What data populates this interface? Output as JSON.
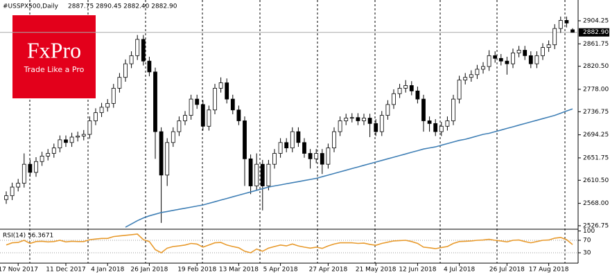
{
  "logo": {
    "brand": "FxPro",
    "tagline": "Trade Like a Pro"
  },
  "chart_data": [
    {
      "type": "candlestick",
      "title": "#USSPX500,Daily",
      "subtitle": "2887.75 2890.45 2882.40 2882.90",
      "categories": [
        null,
        null,
        "17 Nov 2017",
        null,
        null,
        null,
        null,
        null,
        null,
        null,
        "11 Dec 2017",
        null,
        null,
        null,
        null,
        null,
        null,
        "4 Jan 2018",
        null,
        null,
        null,
        null,
        null,
        null,
        "26 Jan 2018",
        null,
        null,
        null,
        null,
        null,
        null,
        null,
        "19 Feb 2018",
        null,
        null,
        null,
        null,
        null,
        null,
        "13 Mar 2018",
        null,
        null,
        null,
        null,
        null,
        null,
        "5 Apr 2018",
        null,
        null,
        null,
        null,
        null,
        null,
        null,
        "27 Apr 2018",
        null,
        null,
        null,
        null,
        null,
        null,
        null,
        "21 May 2018",
        null,
        null,
        null,
        null,
        null,
        null,
        "12 Jun 2018",
        null,
        null,
        null,
        null,
        null,
        null,
        "4 Jul 2018",
        null,
        null,
        null,
        null,
        null,
        null,
        null,
        "26 Jul 2018",
        null,
        null,
        null,
        null,
        null,
        null,
        "17 Aug 2018",
        null,
        null,
        null,
        null
      ],
      "open": [
        2575,
        2582,
        2598,
        2605,
        2640,
        2625,
        2645,
        2655,
        2660,
        2670,
        2685,
        2680,
        2690,
        2692,
        2695,
        2720,
        2735,
        2745,
        2752,
        2780,
        2800,
        2825,
        2840,
        2870,
        2830,
        2810,
        2700,
        2620,
        2680,
        2700,
        2720,
        2730,
        2760,
        2750,
        2710,
        2740,
        2780,
        2790,
        2760,
        2740,
        2720,
        2650,
        2600,
        2640,
        2600,
        2640,
        2660,
        2680,
        2670,
        2700,
        2680,
        2660,
        2650,
        2660,
        2640,
        2670,
        2700,
        2720,
        2725,
        2726,
        2720,
        2725,
        2715,
        2700,
        2730,
        2750,
        2770,
        2780,
        2785,
        2775,
        2760,
        2720,
        2715,
        2700,
        2710,
        2720,
        2760,
        2795,
        2800,
        2805,
        2815,
        2820,
        2840,
        2835,
        2830,
        2825,
        2845,
        2850,
        2840,
        2825,
        2840,
        2855,
        2860,
        2890,
        2905,
        2887.75
      ],
      "high": [
        2590,
        2606,
        2613,
        2660,
        2648,
        2653,
        2663,
        2668,
        2678,
        2693,
        2693,
        2698,
        2700,
        2703,
        2728,
        2743,
        2753,
        2760,
        2788,
        2808,
        2833,
        2848,
        2878,
        2878,
        2838,
        2818,
        2708,
        2688,
        2708,
        2728,
        2738,
        2768,
        2768,
        2758,
        2748,
        2788,
        2800,
        2798,
        2768,
        2748,
        2728,
        2658,
        2660,
        2648,
        2648,
        2668,
        2688,
        2688,
        2708,
        2708,
        2688,
        2668,
        2668,
        2668,
        2678,
        2708,
        2728,
        2733,
        2734,
        2734,
        2733,
        2733,
        2723,
        2738,
        2758,
        2778,
        2788,
        2795,
        2793,
        2783,
        2768,
        2728,
        2723,
        2718,
        2728,
        2768,
        2803,
        2808,
        2813,
        2823,
        2828,
        2850,
        2848,
        2843,
        2838,
        2853,
        2858,
        2858,
        2848,
        2848,
        2863,
        2868,
        2898,
        2912,
        2912,
        2890.45
      ],
      "low": [
        2567,
        2574,
        2590,
        2597,
        2617,
        2617,
        2637,
        2647,
        2652,
        2662,
        2672,
        2672,
        2682,
        2684,
        2687,
        2712,
        2727,
        2737,
        2744,
        2772,
        2792,
        2817,
        2832,
        2822,
        2802,
        2650,
        2532,
        2600,
        2672,
        2692,
        2712,
        2722,
        2742,
        2702,
        2702,
        2732,
        2772,
        2752,
        2732,
        2712,
        2600,
        2585,
        2592,
        2555,
        2592,
        2632,
        2652,
        2662,
        2662,
        2672,
        2652,
        2632,
        2642,
        2622,
        2632,
        2662,
        2692,
        2712,
        2717,
        2712,
        2712,
        2690,
        2692,
        2692,
        2722,
        2742,
        2762,
        2772,
        2767,
        2752,
        2700,
        2700,
        2692,
        2692,
        2702,
        2712,
        2752,
        2787,
        2792,
        2797,
        2807,
        2812,
        2827,
        2822,
        2805,
        2817,
        2837,
        2832,
        2817,
        2817,
        2832,
        2847,
        2852,
        2882,
        2892,
        2882.4
      ],
      "close": [
        2582,
        2598,
        2605,
        2640,
        2625,
        2645,
        2655,
        2660,
        2670,
        2685,
        2680,
        2690,
        2692,
        2695,
        2720,
        2735,
        2745,
        2752,
        2780,
        2800,
        2825,
        2840,
        2870,
        2830,
        2810,
        2700,
        2620,
        2680,
        2700,
        2720,
        2730,
        2760,
        2750,
        2710,
        2740,
        2780,
        2790,
        2760,
        2740,
        2720,
        2650,
        2600,
        2640,
        2600,
        2640,
        2660,
        2680,
        2670,
        2700,
        2680,
        2660,
        2650,
        2660,
        2640,
        2670,
        2700,
        2720,
        2725,
        2726,
        2720,
        2725,
        2715,
        2700,
        2730,
        2750,
        2770,
        2780,
        2785,
        2775,
        2760,
        2720,
        2715,
        2700,
        2710,
        2720,
        2760,
        2795,
        2800,
        2805,
        2815,
        2820,
        2840,
        2835,
        2830,
        2825,
        2845,
        2850,
        2840,
        2825,
        2840,
        2855,
        2860,
        2890,
        2905,
        2900,
        2882.9
      ],
      "ma_values": [
        null,
        null,
        null,
        null,
        null,
        null,
        null,
        null,
        null,
        null,
        null,
        null,
        null,
        null,
        null,
        null,
        null,
        null,
        null,
        null,
        2524,
        2530,
        2536,
        2541,
        2545,
        2548,
        2551,
        2553,
        2555,
        2557,
        2559,
        2561,
        2563,
        2565,
        2568,
        2571,
        2574,
        2577,
        2580,
        2583,
        2586,
        2589,
        2592,
        2595,
        2598,
        2600,
        2602,
        2604,
        2606,
        2608,
        2610,
        2612,
        2614,
        2617,
        2620,
        2623,
        2626,
        2629,
        2632,
        2635,
        2638,
        2641,
        2644,
        2647,
        2650,
        2653,
        2656,
        2659,
        2662,
        2665,
        2668,
        2670,
        2672,
        2675,
        2678,
        2681,
        2684,
        2686,
        2689,
        2692,
        2695,
        2697,
        2700,
        2703,
        2706,
        2709,
        2712,
        2715,
        2718,
        2721,
        2724,
        2727,
        2730,
        2734,
        2738,
        2742
      ],
      "ma_color": "#3f7fb5",
      "up_color": "#ffffff",
      "down_color": "#000000",
      "last_price": {
        "value": 2882.9,
        "label": "2882.90"
      },
      "ylim": [
        2521.6,
        2942.5
      ],
      "yticks": [
        2904.25,
        2861.75,
        {
          "value": 2820.5,
          "label": "2820.50"
        },
        {
          "value": 2778,
          "label": "2778.00"
        },
        2736.75,
        2694.25,
        2651.75,
        {
          "value": 2610.5,
          "label": "2610.50"
        },
        {
          "value": 2568,
          "label": "2568.00"
        },
        2526.75
      ]
    },
    {
      "type": "line",
      "title": "RSI(14) 56.3671",
      "color": "#e89a2c",
      "values": [
        55,
        62,
        63,
        70,
        60,
        66,
        67,
        65,
        66,
        70,
        65,
        67,
        66,
        66,
        72,
        74,
        76,
        76,
        82,
        84,
        86,
        88,
        90,
        72,
        66,
        40,
        30,
        45,
        50,
        52,
        55,
        60,
        58,
        48,
        55,
        62,
        63,
        55,
        50,
        46,
        35,
        30,
        42,
        35,
        45,
        50,
        55,
        52,
        58,
        52,
        48,
        45,
        48,
        44,
        52,
        58,
        62,
        62,
        62,
        60,
        61,
        57,
        54,
        60,
        64,
        68,
        69,
        70,
        66,
        60,
        48,
        46,
        43,
        47,
        50,
        60,
        66,
        67,
        68,
        70,
        71,
        73,
        70,
        68,
        65,
        70,
        71,
        66,
        62,
        66,
        70,
        71,
        77,
        79,
        72,
        56.3671
      ],
      "ylim": [
        0,
        100
      ],
      "yticks": [
        100,
        70,
        30
      ]
    }
  ]
}
